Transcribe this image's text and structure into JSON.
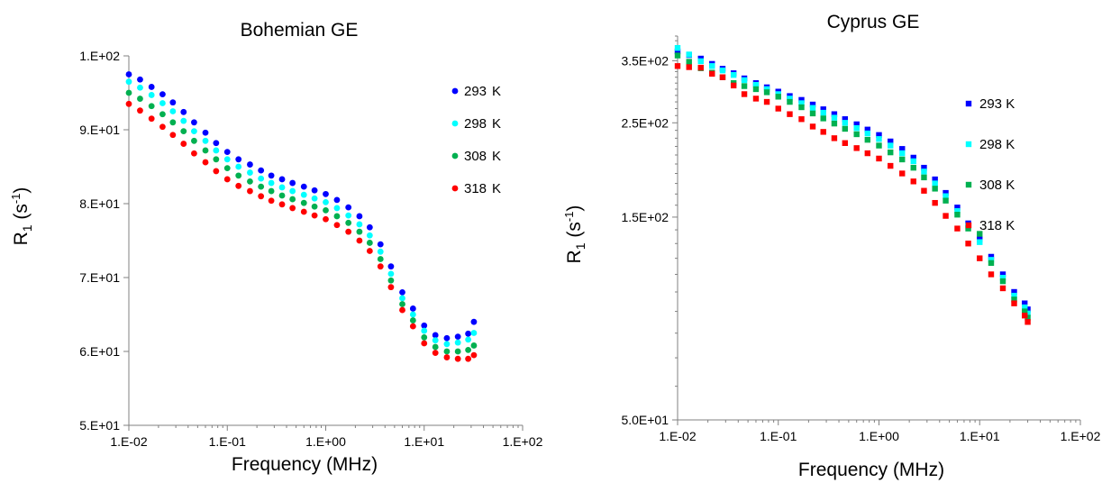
{
  "chart_data": [
    {
      "type": "scatter",
      "title": "Bohemian GE",
      "xlabel": "Frequency (MHz)",
      "ylabel_main": "R",
      "ylabel_sub": "1",
      "ylabel_open": " (s",
      "ylabel_sup": "-1",
      "ylabel_close": ")",
      "xscale": "log",
      "xlim": [
        0.01,
        100
      ],
      "ylim": [
        50,
        100
      ],
      "xticks": [
        0.01,
        0.1,
        1,
        10,
        100
      ],
      "xtick_labels": [
        "1.E-02",
        "1.E-01",
        "1.E+00",
        "1.E+01",
        "1.E+02"
      ],
      "yticks": [
        50,
        60,
        70,
        80,
        90,
        100
      ],
      "ytick_labels": [
        "5.E+01",
        "6.E+01",
        "7.E+01",
        "8.E+01",
        "9.E+01",
        "1.E+02"
      ],
      "marker": "circle",
      "legend_position": "top-right",
      "x": [
        0.01,
        0.013,
        0.017,
        0.022,
        0.028,
        0.036,
        0.046,
        0.06,
        0.077,
        0.1,
        0.13,
        0.17,
        0.22,
        0.28,
        0.36,
        0.46,
        0.6,
        0.77,
        1.0,
        1.3,
        1.7,
        2.2,
        2.8,
        3.6,
        4.6,
        6.0,
        7.7,
        10.0,
        13.0,
        17.0,
        22.0,
        28.0,
        32.0
      ],
      "series": [
        {
          "name": "293",
          "unit": "K",
          "color": "#0000ff",
          "values": [
            97.5,
            96.8,
            95.8,
            94.8,
            93.7,
            92.4,
            91.0,
            89.6,
            88.2,
            87.0,
            86.0,
            85.3,
            84.5,
            83.8,
            83.3,
            82.8,
            82.3,
            81.8,
            81.3,
            80.5,
            79.5,
            78.3,
            76.8,
            74.5,
            71.5,
            68.0,
            65.8,
            63.5,
            62.2,
            61.8,
            62.0,
            62.4,
            64.0
          ]
        },
        {
          "name": "298",
          "unit": "K",
          "color": "#00ffff",
          "values": [
            96.5,
            95.7,
            94.7,
            93.6,
            92.5,
            91.2,
            89.8,
            88.5,
            87.2,
            86.0,
            85.0,
            84.2,
            83.4,
            82.8,
            82.2,
            81.7,
            81.2,
            80.7,
            80.2,
            79.4,
            78.4,
            77.2,
            75.7,
            73.5,
            70.5,
            67.2,
            65.0,
            62.8,
            61.5,
            61.0,
            61.2,
            61.6,
            62.5
          ]
        },
        {
          "name": "308",
          "unit": "K",
          "color": "#00b050",
          "values": [
            95.0,
            94.2,
            93.2,
            92.1,
            91.0,
            89.8,
            88.5,
            87.2,
            86.0,
            84.8,
            83.8,
            83.0,
            82.3,
            81.7,
            81.1,
            80.6,
            80.1,
            79.6,
            79.1,
            78.3,
            77.4,
            76.2,
            74.7,
            72.5,
            69.6,
            66.4,
            64.2,
            61.9,
            60.6,
            60.0,
            60.0,
            60.2,
            60.8
          ]
        },
        {
          "name": "318",
          "unit": "K",
          "color": "#ff0000",
          "values": [
            93.5,
            92.6,
            91.5,
            90.4,
            89.3,
            88.1,
            86.8,
            85.6,
            84.4,
            83.3,
            82.4,
            81.7,
            81.0,
            80.4,
            79.9,
            79.4,
            78.9,
            78.4,
            77.9,
            77.1,
            76.2,
            75.0,
            73.6,
            71.5,
            68.7,
            65.6,
            63.4,
            61.1,
            59.8,
            59.2,
            59.0,
            59.0,
            59.5
          ]
        }
      ]
    },
    {
      "type": "scatter",
      "title": "Cyprus GE",
      "xlabel": "Frequency (MHz)",
      "ylabel_main": "R",
      "ylabel_sub": "1",
      "ylabel_open": " (s",
      "ylabel_sup": "-1",
      "ylabel_close": ")",
      "xscale": "log",
      "xlim": [
        0.01,
        100
      ],
      "ylim": [
        50,
        400
      ],
      "xticks": [
        0.01,
        0.1,
        1,
        10,
        100
      ],
      "xtick_labels": [
        "1.E-02",
        "1.E-01",
        "1.E+00",
        "1.E+01",
        "1.E+02"
      ],
      "yticks": [
        50,
        150,
        250,
        350
      ],
      "ytick_labels": [
        "5.0E+01",
        "1.5E+02",
        "2.5E+02",
        "3.5E+02"
      ],
      "marker": "square",
      "legend_position": "top-right",
      "x": [
        0.01,
        0.013,
        0.017,
        0.022,
        0.028,
        0.036,
        0.046,
        0.06,
        0.077,
        0.1,
        0.13,
        0.17,
        0.22,
        0.28,
        0.36,
        0.46,
        0.6,
        0.77,
        1.0,
        1.3,
        1.7,
        2.2,
        2.8,
        3.6,
        4.6,
        6.0,
        7.7,
        10.0,
        13.0,
        17.0,
        22.0,
        28.0,
        30.0
      ],
      "series": [
        {
          "name": "293 K",
          "color": "#0000ff",
          "values": [
            368,
            361,
            354,
            344,
            335,
            327,
            318,
            310,
            303,
            296,
            289,
            283,
            276,
            269,
            262,
            255,
            248,
            241,
            234,
            226,
            217,
            207,
            196,
            184,
            171,
            158,
            145,
            133,
            121,
            110,
            100,
            94,
            91
          ]
        },
        {
          "name": "298 K",
          "color": "#00ffff",
          "values": [
            375,
            362,
            349,
            340,
            332,
            324,
            315,
            307,
            300,
            292,
            285,
            278,
            271,
            264,
            257,
            250,
            243,
            236,
            229,
            221,
            212,
            203,
            192,
            180,
            168,
            155,
            143,
            131,
            119,
            108,
            98,
            92,
            89
          ]
        },
        {
          "name": "308 K",
          "color": "#00b050",
          "values": [
            360,
            348,
            336,
            328,
            320,
            310,
            305,
            300,
            295,
            288,
            280,
            272,
            263,
            256,
            249,
            242,
            235,
            228,
            221,
            213,
            205,
            196,
            186,
            175,
            164,
            152,
            141,
            137,
            117,
            106,
            96,
            90,
            87
          ]
        },
        {
          "name": "318 K",
          "color": "#ff0000",
          "values": [
            340,
            338,
            337,
            326,
            320,
            306,
            292,
            285,
            280,
            270,
            262,
            255,
            245,
            238,
            230,
            224,
            218,
            212,
            206,
            198,
            190,
            182,
            173,
            162,
            151,
            141,
            130,
            120,
            110,
            102,
            94,
            88,
            85
          ]
        }
      ]
    }
  ]
}
